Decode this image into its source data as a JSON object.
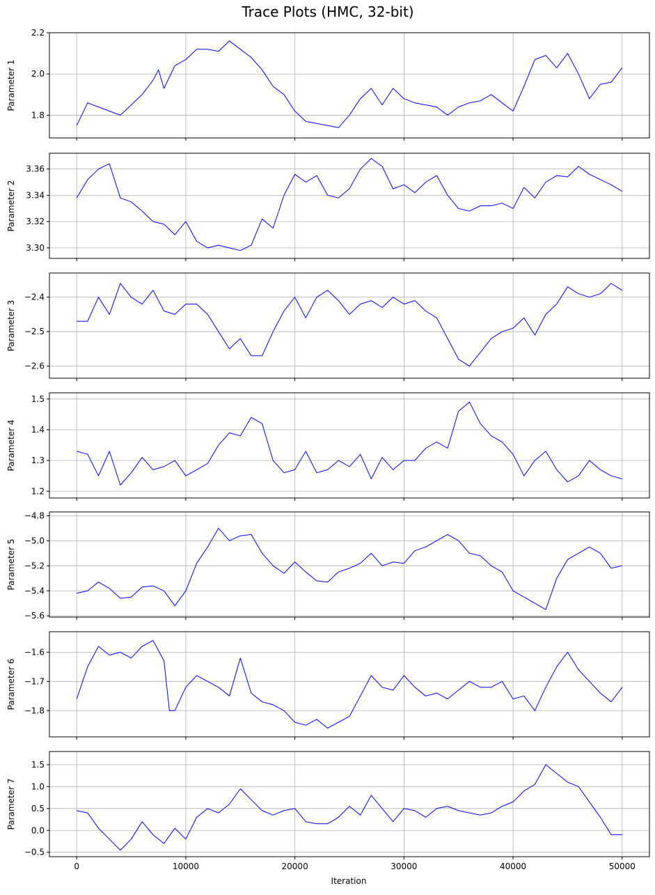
{
  "figure": {
    "title": "Trace Plots (HMC, 32-bit)",
    "xlabel": "Iteration",
    "line_color": "#0000ff",
    "grid_color": "#b0b0b0"
  },
  "chart_data": [
    {
      "type": "line",
      "ylabel": "Parameter 1",
      "xlim": [
        -2500,
        52500
      ],
      "ylim": [
        1.69,
        2.2
      ],
      "xticks": [
        0,
        10000,
        20000,
        30000,
        40000,
        50000
      ],
      "yticks": [
        1.8,
        2.0,
        2.2
      ],
      "ytick_labels": [
        "1.8",
        "2.0",
        "2.2"
      ],
      "grid": true,
      "x": [
        0,
        1000,
        2000,
        3000,
        4000,
        5000,
        6000,
        7000,
        7500,
        8000,
        9000,
        10000,
        11000,
        12000,
        13000,
        14000,
        15000,
        16000,
        17000,
        18000,
        19000,
        20000,
        21000,
        22000,
        23000,
        24000,
        25000,
        26000,
        27000,
        28000,
        29000,
        30000,
        31000,
        32000,
        33000,
        34000,
        35000,
        36000,
        37000,
        38000,
        39000,
        40000,
        41000,
        42000,
        43000,
        44000,
        45000,
        46000,
        47000,
        48000,
        49000,
        50000
      ],
      "y": [
        1.75,
        1.86,
        1.84,
        1.82,
        1.8,
        1.85,
        1.9,
        1.97,
        2.02,
        1.93,
        2.04,
        2.07,
        2.12,
        2.12,
        2.11,
        2.16,
        2.12,
        2.08,
        2.02,
        1.94,
        1.9,
        1.82,
        1.77,
        1.76,
        1.75,
        1.74,
        1.8,
        1.88,
        1.93,
        1.85,
        1.93,
        1.88,
        1.86,
        1.85,
        1.84,
        1.8,
        1.84,
        1.86,
        1.87,
        1.9,
        1.86,
        1.82,
        1.94,
        2.07,
        2.09,
        2.03,
        2.1,
        2.0,
        1.88,
        1.95,
        1.96,
        2.03
      ]
    },
    {
      "type": "line",
      "ylabel": "Parameter 2",
      "xlim": [
        -2500,
        52500
      ],
      "ylim": [
        3.292,
        3.372
      ],
      "xticks": [
        0,
        10000,
        20000,
        30000,
        40000,
        50000
      ],
      "yticks": [
        3.3,
        3.32,
        3.34,
        3.36
      ],
      "ytick_labels": [
        "3.30",
        "3.32",
        "3.34",
        "3.36"
      ],
      "grid": true,
      "x": [
        0,
        1000,
        2000,
        3000,
        4000,
        5000,
        6000,
        7000,
        8000,
        9000,
        10000,
        11000,
        12000,
        13000,
        14000,
        15000,
        16000,
        17000,
        18000,
        19000,
        20000,
        21000,
        22000,
        23000,
        24000,
        25000,
        26000,
        27000,
        28000,
        29000,
        30000,
        31000,
        32000,
        33000,
        34000,
        35000,
        36000,
        37000,
        38000,
        39000,
        40000,
        41000,
        42000,
        43000,
        44000,
        45000,
        46000,
        47000,
        48000,
        49000,
        50000
      ],
      "y": [
        3.338,
        3.352,
        3.36,
        3.364,
        3.338,
        3.335,
        3.328,
        3.32,
        3.318,
        3.31,
        3.32,
        3.305,
        3.3,
        3.302,
        3.3,
        3.298,
        3.302,
        3.322,
        3.315,
        3.34,
        3.356,
        3.35,
        3.355,
        3.34,
        3.338,
        3.345,
        3.36,
        3.368,
        3.362,
        3.345,
        3.348,
        3.342,
        3.35,
        3.355,
        3.34,
        3.33,
        3.328,
        3.332,
        3.332,
        3.334,
        3.33,
        3.346,
        3.338,
        3.35,
        3.355,
        3.354,
        3.362,
        3.356,
        3.352,
        3.348,
        3.343
      ]
    },
    {
      "type": "line",
      "ylabel": "Parameter 3",
      "xlim": [
        -2500,
        52500
      ],
      "ylim": [
        -2.635,
        -2.33
      ],
      "xticks": [
        0,
        10000,
        20000,
        30000,
        40000,
        50000
      ],
      "yticks": [
        -2.6,
        -2.5,
        -2.4
      ],
      "ytick_labels": [
        "−2.6",
        "−2.5",
        "−2.4"
      ],
      "grid": true,
      "x": [
        0,
        1000,
        2000,
        3000,
        4000,
        5000,
        6000,
        7000,
        8000,
        9000,
        10000,
        11000,
        12000,
        13000,
        14000,
        15000,
        16000,
        17000,
        18000,
        19000,
        20000,
        21000,
        22000,
        23000,
        24000,
        25000,
        26000,
        27000,
        28000,
        29000,
        30000,
        31000,
        32000,
        33000,
        34000,
        35000,
        36000,
        37000,
        38000,
        39000,
        40000,
        41000,
        42000,
        43000,
        44000,
        45000,
        46000,
        47000,
        48000,
        49000,
        50000
      ],
      "y": [
        -2.47,
        -2.47,
        -2.4,
        -2.45,
        -2.36,
        -2.4,
        -2.42,
        -2.38,
        -2.44,
        -2.45,
        -2.42,
        -2.42,
        -2.45,
        -2.5,
        -2.55,
        -2.52,
        -2.57,
        -2.57,
        -2.5,
        -2.44,
        -2.4,
        -2.46,
        -2.4,
        -2.38,
        -2.41,
        -2.45,
        -2.42,
        -2.41,
        -2.43,
        -2.4,
        -2.42,
        -2.41,
        -2.44,
        -2.46,
        -2.52,
        -2.58,
        -2.6,
        -2.56,
        -2.52,
        -2.5,
        -2.49,
        -2.46,
        -2.51,
        -2.45,
        -2.42,
        -2.37,
        -2.39,
        -2.4,
        -2.39,
        -2.36,
        -2.38
      ]
    },
    {
      "type": "line",
      "ylabel": "Parameter 4",
      "xlim": [
        -2500,
        52500
      ],
      "ylim": [
        1.178,
        1.52
      ],
      "xticks": [
        0,
        10000,
        20000,
        30000,
        40000,
        50000
      ],
      "yticks": [
        1.2,
        1.3,
        1.4,
        1.5
      ],
      "ytick_labels": [
        "1.2",
        "1.3",
        "1.4",
        "1.5"
      ],
      "grid": true,
      "x": [
        0,
        1000,
        2000,
        3000,
        4000,
        5000,
        6000,
        7000,
        8000,
        9000,
        10000,
        11000,
        12000,
        13000,
        14000,
        15000,
        16000,
        17000,
        18000,
        19000,
        20000,
        21000,
        22000,
        23000,
        24000,
        25000,
        26000,
        27000,
        28000,
        29000,
        30000,
        31000,
        32000,
        33000,
        34000,
        35000,
        36000,
        37000,
        38000,
        39000,
        40000,
        41000,
        42000,
        43000,
        44000,
        45000,
        46000,
        47000,
        48000,
        49000,
        50000
      ],
      "y": [
        1.33,
        1.32,
        1.25,
        1.33,
        1.22,
        1.26,
        1.31,
        1.27,
        1.28,
        1.3,
        1.25,
        1.27,
        1.29,
        1.35,
        1.39,
        1.38,
        1.44,
        1.42,
        1.3,
        1.26,
        1.27,
        1.33,
        1.26,
        1.27,
        1.3,
        1.28,
        1.32,
        1.24,
        1.31,
        1.27,
        1.3,
        1.3,
        1.34,
        1.36,
        1.34,
        1.46,
        1.49,
        1.42,
        1.38,
        1.36,
        1.32,
        1.25,
        1.3,
        1.33,
        1.27,
        1.23,
        1.25,
        1.3,
        1.27,
        1.25,
        1.24
      ]
    },
    {
      "type": "line",
      "ylabel": "Parameter 5",
      "xlim": [
        -2500,
        52500
      ],
      "ylim": [
        -5.61,
        -4.77
      ],
      "xticks": [
        0,
        10000,
        20000,
        30000,
        40000,
        50000
      ],
      "yticks": [
        -5.6,
        -5.4,
        -5.2,
        -5.0,
        -4.8
      ],
      "ytick_labels": [
        "−5.6",
        "−5.4",
        "−5.2",
        "−5.0",
        "−4.8"
      ],
      "grid": true,
      "x": [
        0,
        1000,
        2000,
        3000,
        4000,
        5000,
        6000,
        7000,
        8000,
        9000,
        10000,
        11000,
        12000,
        13000,
        14000,
        15000,
        16000,
        17000,
        18000,
        19000,
        20000,
        21000,
        22000,
        23000,
        24000,
        25000,
        26000,
        27000,
        28000,
        29000,
        30000,
        31000,
        32000,
        33000,
        34000,
        35000,
        36000,
        37000,
        38000,
        39000,
        40000,
        41000,
        42000,
        43000,
        44000,
        45000,
        46000,
        47000,
        48000,
        49000,
        50000
      ],
      "y": [
        -5.42,
        -5.4,
        -5.33,
        -5.38,
        -5.46,
        -5.45,
        -5.37,
        -5.36,
        -5.4,
        -5.52,
        -5.4,
        -5.18,
        -5.05,
        -4.9,
        -5.0,
        -4.96,
        -4.95,
        -5.1,
        -5.2,
        -5.26,
        -5.17,
        -5.25,
        -5.32,
        -5.33,
        -5.25,
        -5.22,
        -5.18,
        -5.1,
        -5.2,
        -5.17,
        -5.18,
        -5.08,
        -5.05,
        -5.0,
        -4.95,
        -5.0,
        -5.1,
        -5.12,
        -5.2,
        -5.25,
        -5.4,
        -5.45,
        -5.5,
        -5.55,
        -5.3,
        -5.15,
        -5.1,
        -5.05,
        -5.1,
        -5.22,
        -5.2
      ]
    },
    {
      "type": "line",
      "ylabel": "Parameter 6",
      "xlim": [
        -2500,
        52500
      ],
      "ylim": [
        -1.89,
        -1.53
      ],
      "xticks": [
        0,
        10000,
        20000,
        30000,
        40000,
        50000
      ],
      "yticks": [
        -1.8,
        -1.7,
        -1.6
      ],
      "ytick_labels": [
        "−1.8",
        "−1.7",
        "−1.6"
      ],
      "grid": true,
      "x": [
        0,
        1000,
        2000,
        3000,
        4000,
        5000,
        6000,
        7000,
        8000,
        8500,
        9000,
        10000,
        11000,
        12000,
        13000,
        14000,
        15000,
        16000,
        17000,
        18000,
        19000,
        20000,
        21000,
        22000,
        23000,
        24000,
        25000,
        26000,
        27000,
        28000,
        29000,
        30000,
        31000,
        32000,
        33000,
        34000,
        35000,
        36000,
        37000,
        38000,
        39000,
        40000,
        41000,
        42000,
        43000,
        44000,
        45000,
        46000,
        47000,
        48000,
        49000,
        50000
      ],
      "y": [
        -1.76,
        -1.65,
        -1.58,
        -1.61,
        -1.6,
        -1.62,
        -1.58,
        -1.56,
        -1.63,
        -1.8,
        -1.8,
        -1.72,
        -1.68,
        -1.7,
        -1.72,
        -1.75,
        -1.62,
        -1.74,
        -1.77,
        -1.78,
        -1.8,
        -1.84,
        -1.85,
        -1.83,
        -1.86,
        -1.84,
        -1.82,
        -1.75,
        -1.68,
        -1.72,
        -1.73,
        -1.68,
        -1.72,
        -1.75,
        -1.74,
        -1.76,
        -1.73,
        -1.7,
        -1.72,
        -1.72,
        -1.7,
        -1.76,
        -1.75,
        -1.8,
        -1.72,
        -1.65,
        -1.6,
        -1.66,
        -1.7,
        -1.74,
        -1.77,
        -1.72
      ]
    },
    {
      "type": "line",
      "ylabel": "Parameter 7",
      "xlim": [
        -2500,
        52500
      ],
      "ylim": [
        -0.6,
        1.8
      ],
      "xticks": [
        0,
        10000,
        20000,
        30000,
        40000,
        50000
      ],
      "xtick_labels": [
        "0",
        "10000",
        "20000",
        "30000",
        "40000",
        "50000"
      ],
      "yticks": [
        -0.5,
        0.0,
        0.5,
        1.0,
        1.5
      ],
      "ytick_labels": [
        "−0.5",
        "0.0",
        "0.5",
        "1.0",
        "1.5"
      ],
      "grid": true,
      "x": [
        0,
        1000,
        2000,
        3000,
        4000,
        5000,
        6000,
        7000,
        8000,
        9000,
        10000,
        11000,
        12000,
        13000,
        14000,
        15000,
        16000,
        17000,
        18000,
        19000,
        20000,
        21000,
        22000,
        23000,
        24000,
        25000,
        26000,
        27000,
        28000,
        29000,
        30000,
        31000,
        32000,
        33000,
        34000,
        35000,
        36000,
        37000,
        38000,
        39000,
        40000,
        41000,
        42000,
        43000,
        44000,
        45000,
        46000,
        47000,
        48000,
        49000,
        50000
      ],
      "y": [
        0.45,
        0.4,
        0.05,
        -0.2,
        -0.45,
        -0.2,
        0.2,
        -0.1,
        -0.3,
        0.05,
        -0.2,
        0.3,
        0.5,
        0.4,
        0.6,
        0.95,
        0.7,
        0.45,
        0.35,
        0.45,
        0.5,
        0.2,
        0.15,
        0.15,
        0.3,
        0.55,
        0.35,
        0.8,
        0.5,
        0.2,
        0.5,
        0.45,
        0.3,
        0.5,
        0.55,
        0.45,
        0.4,
        0.35,
        0.4,
        0.55,
        0.65,
        0.9,
        1.05,
        1.5,
        1.3,
        1.1,
        1.0,
        0.65,
        0.3,
        -0.1,
        -0.1
      ]
    }
  ]
}
